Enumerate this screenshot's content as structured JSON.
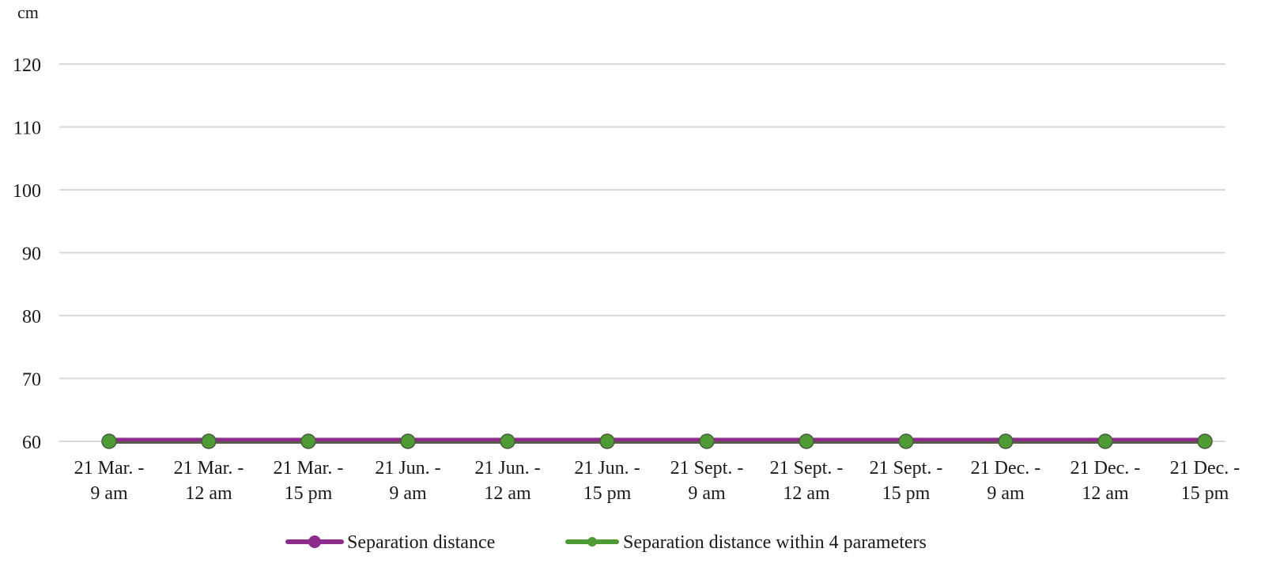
{
  "chart_data": {
    "type": "line",
    "unit_label": "cm",
    "ylim": [
      60,
      120
    ],
    "yticks": [
      60,
      70,
      80,
      90,
      100,
      110,
      120
    ],
    "grid": true,
    "legend_position": "bottom",
    "categories": [
      [
        "21 Mar. -",
        "9 am"
      ],
      [
        "21 Mar. -",
        "12 am"
      ],
      [
        "21 Mar. -",
        "15 pm"
      ],
      [
        "21 Jun. -",
        "9 am"
      ],
      [
        "21 Jun. -",
        "12 am"
      ],
      [
        "21 Jun. -",
        "15 pm"
      ],
      [
        "21 Sept. -",
        "9 am"
      ],
      [
        "21 Sept. -",
        "12 am"
      ],
      [
        "21 Sept. -",
        "15 pm"
      ],
      [
        "21 Dec. -",
        "9 am"
      ],
      [
        "21 Dec. -",
        "12 am"
      ],
      [
        "21 Dec. -",
        "15 pm"
      ]
    ],
    "series": [
      {
        "name": "Separation distance",
        "color": "#8e2c8e",
        "values": [
          60,
          60,
          60,
          60,
          60,
          60,
          60,
          60,
          60,
          60,
          60,
          60
        ]
      },
      {
        "name": "Separation distance within 4 parameters",
        "color": "#4e9a35",
        "values": [
          60,
          60,
          60,
          60,
          60,
          60,
          60,
          60,
          60,
          60,
          60,
          60
        ]
      }
    ]
  }
}
